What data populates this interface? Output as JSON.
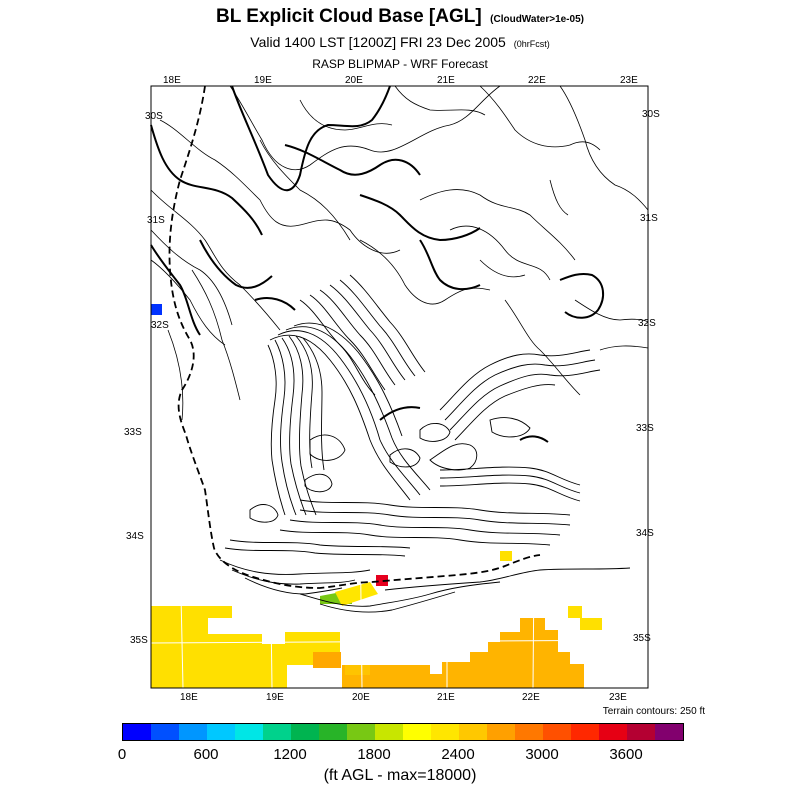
{
  "title": {
    "main": "BL Explicit Cloud Base [AGL]",
    "note": "(CloudWater>1e-05)",
    "valid": "Valid 1400 LST [1200Z] FRI 23 Dec 2005",
    "valid_note": "(0hrFcst)",
    "model": "RASP BLIPMAP - WRF Forecast"
  },
  "map": {
    "top_lon_labels": [
      "18E",
      "19E",
      "20E",
      "21E",
      "22E",
      "23E"
    ],
    "bottom_lon_labels": [
      "18E",
      "19E",
      "20E",
      "21E",
      "22E",
      "23E"
    ],
    "left_lat_labels": [
      "30S",
      "31S",
      "32S",
      "33S",
      "34S",
      "35S"
    ],
    "right_lat_labels": [
      "30S",
      "31S",
      "32S",
      "33S",
      "34S",
      "35S"
    ],
    "terrain_note": "Terrain contours: 250 ft"
  },
  "colorbar": {
    "colors": [
      "#0000ff",
      "#0050ff",
      "#0096ff",
      "#00c8ff",
      "#00e6e6",
      "#00d28c",
      "#00b450",
      "#28b428",
      "#78c814",
      "#c8e600",
      "#ffff00",
      "#ffe600",
      "#ffc800",
      "#ffa000",
      "#ff7800",
      "#ff5000",
      "#ff2800",
      "#e60014",
      "#b40032",
      "#82006e"
    ],
    "ticks": [
      "0",
      "600",
      "1200",
      "1800",
      "2400",
      "3000",
      "3600"
    ],
    "units": "(ft AGL - max=18000)"
  }
}
